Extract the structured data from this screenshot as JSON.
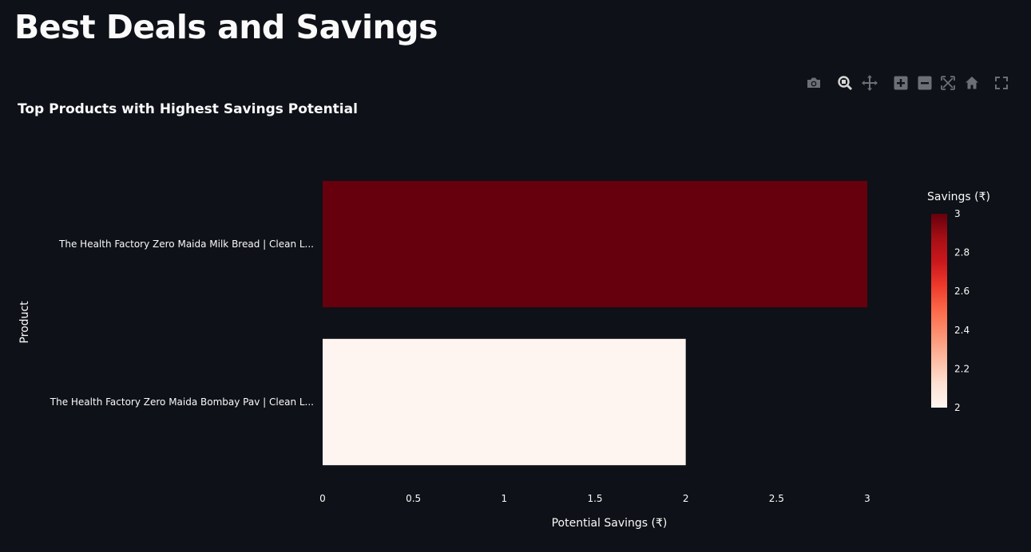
{
  "header": {
    "title": "Best Deals and Savings"
  },
  "modebar": {
    "icons": [
      "camera-icon",
      "zoom-icon",
      "pan-icon",
      "zoom-in-icon",
      "zoom-out-icon",
      "autoscale-icon",
      "home-icon",
      "fullscreen-icon"
    ]
  },
  "chart_data": {
    "type": "bar",
    "orientation": "horizontal",
    "title": "Top Products with Highest Savings Potential",
    "xlabel": "Potential Savings (₹)",
    "ylabel": "Product",
    "categories": [
      "The Health Factory Zero Maida Milk Bread | Clean L...",
      "The Health Factory Zero Maida Bombay Pav | Clean L..."
    ],
    "values": [
      3,
      2
    ],
    "xlim": [
      0,
      3
    ],
    "x_ticks": [
      0,
      0.5,
      1,
      1.5,
      2,
      2.5,
      3
    ],
    "x_tick_labels": [
      "0",
      "0.5",
      "1",
      "1.5",
      "2",
      "2.5",
      "3"
    ],
    "grid": false,
    "colorbar": {
      "title": "Savings (₹)",
      "range": [
        2,
        3
      ],
      "ticks": [
        2,
        2.2,
        2.4,
        2.6,
        2.8,
        3
      ],
      "tick_labels": [
        "2",
        "2.2",
        "2.4",
        "2.6",
        "2.8",
        "3"
      ],
      "colorscale": [
        "#fff5f0",
        "#fcbba1",
        "#fc9272",
        "#fb6a4a",
        "#ef3b2c",
        "#cb181d",
        "#a50f15",
        "#67000d"
      ],
      "placement": "right"
    }
  },
  "colors": {
    "background": "#0e1117",
    "text": "#fafafa",
    "modebar_icon": "#6b6f76"
  }
}
